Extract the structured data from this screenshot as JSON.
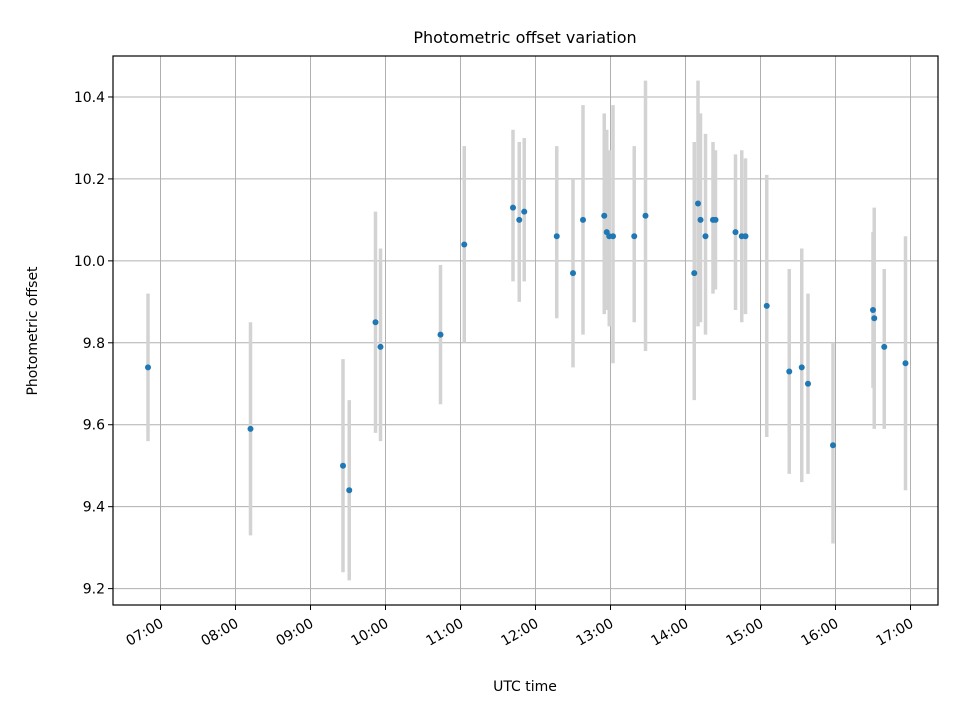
{
  "chart_data": {
    "type": "scatter",
    "title": "Photometric offset variation",
    "xlabel": "UTC time",
    "ylabel": "Photometric offset",
    "x_tick_labels": [
      "07:00",
      "08:00",
      "09:00",
      "10:00",
      "11:00",
      "12:00",
      "13:00",
      "14:00",
      "15:00",
      "16:00",
      "17:00"
    ],
    "y_tick_labels": [
      "9.2",
      "9.4",
      "9.6",
      "9.8",
      "10.0",
      "10.2",
      "10.4"
    ],
    "y_ticks": [
      9.2,
      9.4,
      9.6,
      9.8,
      10.0,
      10.2,
      10.4
    ],
    "x_time_range": [
      "06:22",
      "17:22"
    ],
    "ylim": [
      9.16,
      10.5
    ],
    "grid": true,
    "colors": {
      "point": "#1f77b4",
      "error_bar": "#d3d3d3",
      "grid": "#b0b0b0"
    },
    "points": [
      {
        "x": "06:50",
        "y": 9.74,
        "err_low": 9.56,
        "err_high": 9.92
      },
      {
        "x": "08:12",
        "y": 9.59,
        "err_low": 9.33,
        "err_high": 9.85
      },
      {
        "x": "09:26",
        "y": 9.5,
        "err_low": 9.24,
        "err_high": 9.76
      },
      {
        "x": "09:31",
        "y": 9.44,
        "err_low": 9.22,
        "err_high": 9.66
      },
      {
        "x": "09:52",
        "y": 9.85,
        "err_low": 9.58,
        "err_high": 10.12
      },
      {
        "x": "09:56",
        "y": 9.79,
        "err_low": 9.56,
        "err_high": 10.03
      },
      {
        "x": "10:44",
        "y": 9.82,
        "err_low": 9.65,
        "err_high": 9.99
      },
      {
        "x": "11:03",
        "y": 10.04,
        "err_low": 9.8,
        "err_high": 10.28
      },
      {
        "x": "11:42",
        "y": 10.13,
        "err_low": 9.95,
        "err_high": 10.32
      },
      {
        "x": "11:47",
        "y": 10.1,
        "err_low": 9.9,
        "err_high": 10.29
      },
      {
        "x": "11:51",
        "y": 10.12,
        "err_low": 9.95,
        "err_high": 10.3
      },
      {
        "x": "12:17",
        "y": 10.06,
        "err_low": 9.86,
        "err_high": 10.28
      },
      {
        "x": "12:30",
        "y": 9.97,
        "err_low": 9.74,
        "err_high": 10.2
      },
      {
        "x": "12:38",
        "y": 10.1,
        "err_low": 9.82,
        "err_high": 10.38
      },
      {
        "x": "12:55",
        "y": 10.11,
        "err_low": 9.87,
        "err_high": 10.36
      },
      {
        "x": "12:57",
        "y": 10.07,
        "err_low": 9.88,
        "err_high": 10.32
      },
      {
        "x": "12:59",
        "y": 10.06,
        "err_low": 9.84,
        "err_high": 10.27
      },
      {
        "x": "13:02",
        "y": 10.06,
        "err_low": 9.75,
        "err_high": 10.38
      },
      {
        "x": "13:19",
        "y": 10.06,
        "err_low": 9.85,
        "err_high": 10.28
      },
      {
        "x": "13:28",
        "y": 10.11,
        "err_low": 9.78,
        "err_high": 10.44
      },
      {
        "x": "14:07",
        "y": 9.97,
        "err_low": 9.66,
        "err_high": 10.29
      },
      {
        "x": "14:10",
        "y": 10.14,
        "err_low": 9.84,
        "err_high": 10.44
      },
      {
        "x": "14:12",
        "y": 10.1,
        "err_low": 9.85,
        "err_high": 10.36
      },
      {
        "x": "14:16",
        "y": 10.06,
        "err_low": 9.82,
        "err_high": 10.31
      },
      {
        "x": "14:22",
        "y": 10.1,
        "err_low": 9.92,
        "err_high": 10.29
      },
      {
        "x": "14:24",
        "y": 10.1,
        "err_low": 9.93,
        "err_high": 10.27
      },
      {
        "x": "14:40",
        "y": 10.07,
        "err_low": 9.88,
        "err_high": 10.26
      },
      {
        "x": "14:45",
        "y": 10.06,
        "err_low": 9.85,
        "err_high": 10.27
      },
      {
        "x": "14:48",
        "y": 10.06,
        "err_low": 9.87,
        "err_high": 10.25
      },
      {
        "x": "15:05",
        "y": 9.89,
        "err_low": 9.57,
        "err_high": 10.21
      },
      {
        "x": "15:23",
        "y": 9.73,
        "err_low": 9.48,
        "err_high": 9.98
      },
      {
        "x": "15:33",
        "y": 9.74,
        "err_low": 9.46,
        "err_high": 10.03
      },
      {
        "x": "15:38",
        "y": 9.7,
        "err_low": 9.48,
        "err_high": 9.92
      },
      {
        "x": "15:58",
        "y": 9.55,
        "err_low": 9.31,
        "err_high": 9.8
      },
      {
        "x": "16:30",
        "y": 9.88,
        "err_low": 9.69,
        "err_high": 10.07
      },
      {
        "x": "16:31",
        "y": 9.86,
        "err_low": 9.59,
        "err_high": 10.13
      },
      {
        "x": "16:39",
        "y": 9.79,
        "err_low": 9.59,
        "err_high": 9.98
      },
      {
        "x": "16:56",
        "y": 9.75,
        "err_low": 9.44,
        "err_high": 10.06
      }
    ]
  }
}
